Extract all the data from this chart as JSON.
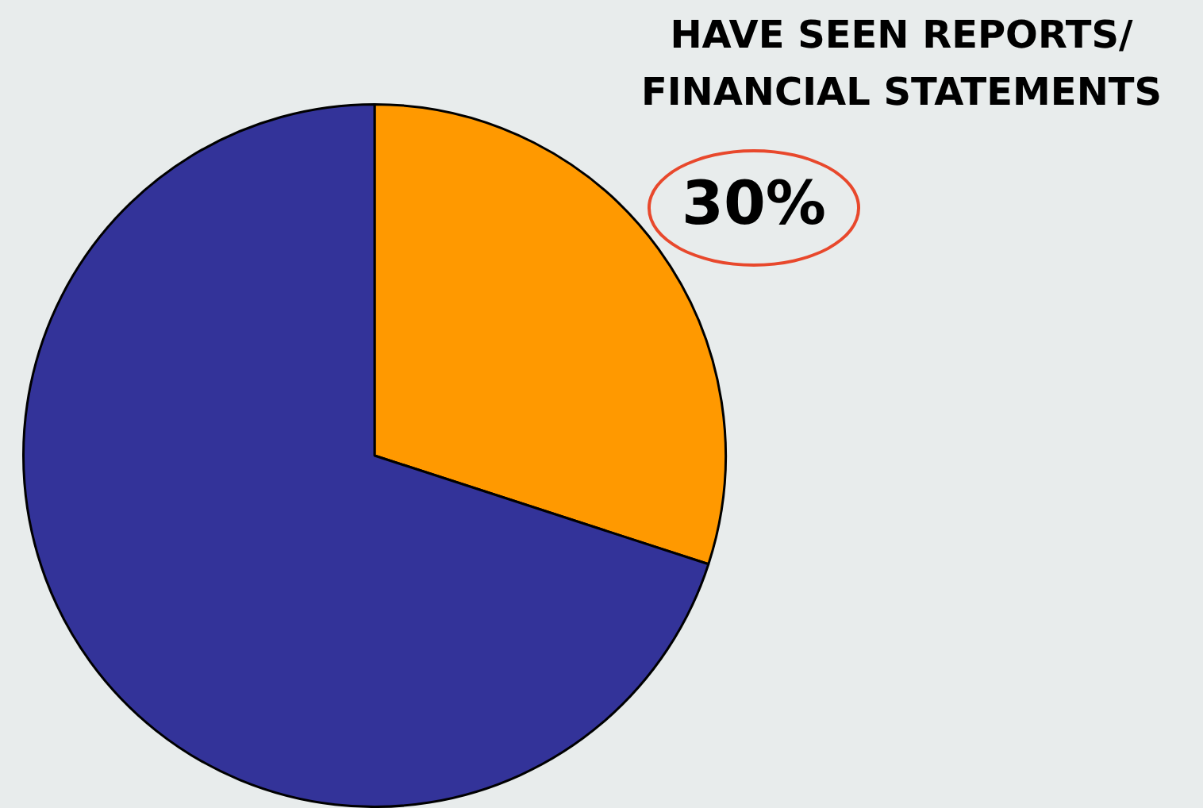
{
  "chart_data": {
    "type": "pie",
    "categories": [
      "HAVE SEEN REPORTS/ FINANCIAL STATEMENTS",
      null
    ],
    "values": [
      30,
      70
    ],
    "colors": [
      "#ff9900",
      "#333399"
    ],
    "value_labels": [
      "30%",
      null
    ],
    "legend": false
  }
}
